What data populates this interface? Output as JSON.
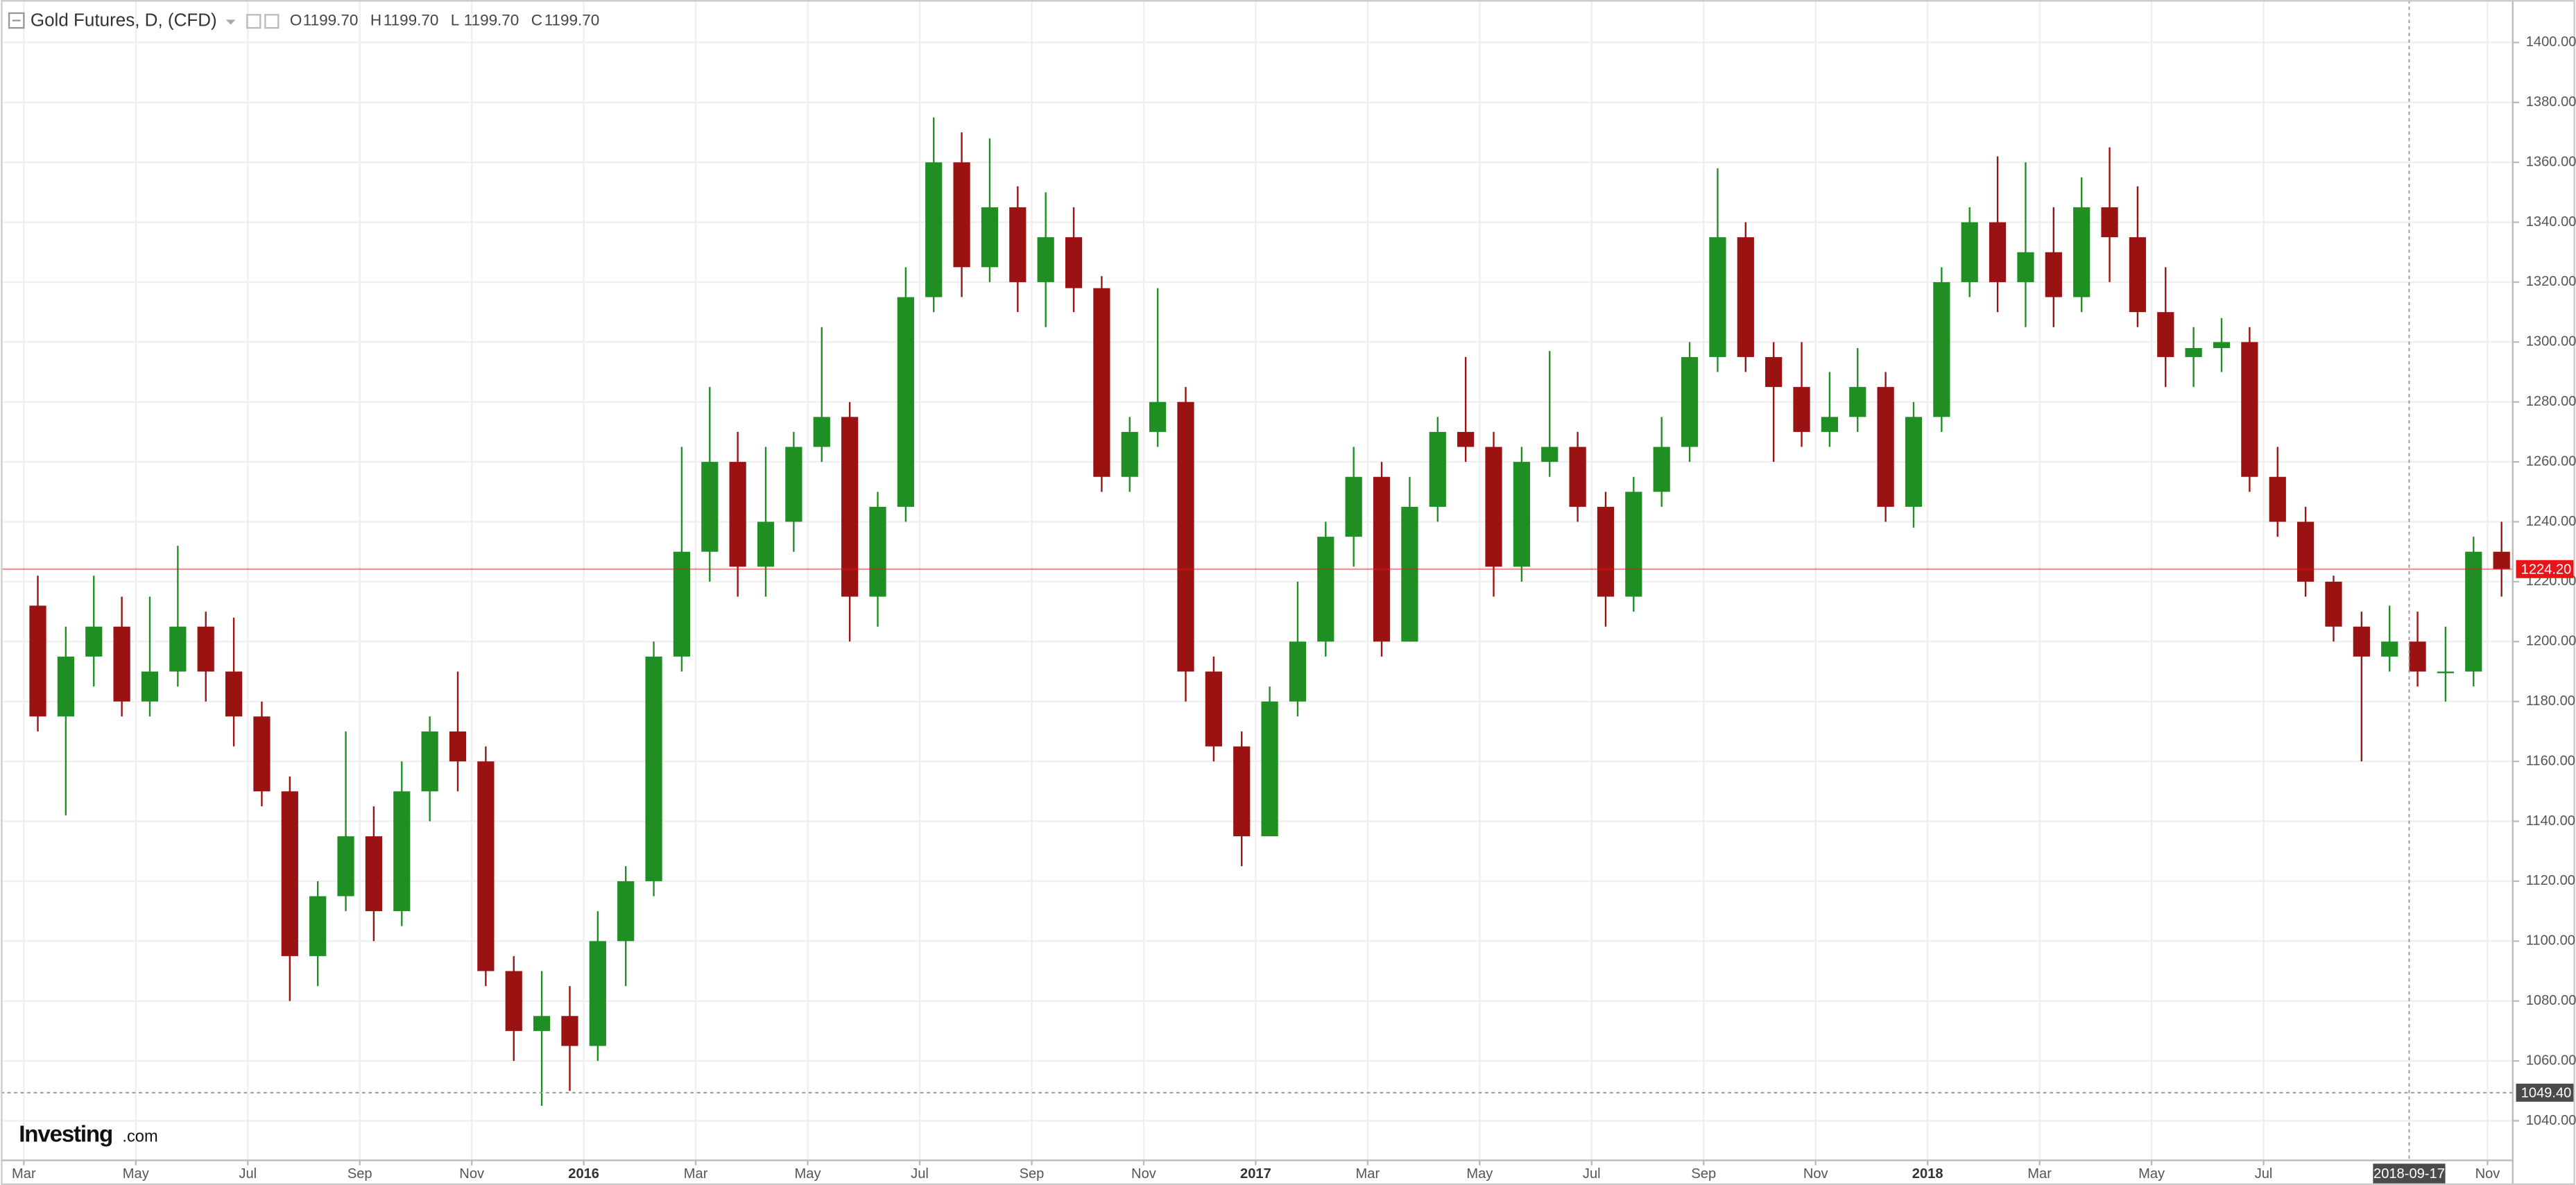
{
  "chart_data": {
    "type": "candlestick",
    "title": "Gold Futures, D, (CFD)",
    "ohlc_readout": [
      {
        "name": "O",
        "value": 1199.7,
        "label": "1199.70"
      },
      {
        "name": "H",
        "value": 1199.7,
        "label": "1199.70"
      },
      {
        "name": "L",
        "value": 1199.7,
        "label": "1199.70"
      },
      {
        "name": "C",
        "value": 1199.7,
        "label": "1199.70"
      }
    ],
    "open": [
      1212,
      1175,
      1195,
      1205,
      1180,
      1190,
      1205,
      1190,
      1175,
      1150,
      1095,
      1115,
      1135,
      1110,
      1150,
      1170,
      1160,
      1090,
      1070,
      1075,
      1065,
      1100,
      1120,
      1195,
      1230,
      1260,
      1225,
      1240,
      1265,
      1275,
      1215,
      1245,
      1315,
      1360,
      1325,
      1345,
      1320,
      1335,
      1318,
      1255,
      1270,
      1280,
      1190,
      1165,
      1135,
      1180,
      1200,
      1235,
      1255,
      1200,
      1245,
      1270,
      1265,
      1225,
      1260,
      1265,
      1245,
      1215,
      1250,
      1265,
      1295,
      1335,
      1295,
      1285,
      1270,
      1275,
      1285,
      1245,
      1275,
      1320,
      1340,
      1320,
      1330,
      1315,
      1345,
      1335,
      1310,
      1295,
      1298,
      1300,
      1255,
      1240,
      1220,
      1205,
      1195,
      1200,
      1190,
      1190,
      1230
    ],
    "high": [
      1222,
      1205,
      1222,
      1215,
      1215,
      1232,
      1210,
      1208,
      1180,
      1155,
      1120,
      1170,
      1145,
      1160,
      1175,
      1190,
      1165,
      1095,
      1090,
      1085,
      1110,
      1125,
      1200,
      1265,
      1285,
      1270,
      1265,
      1270,
      1305,
      1280,
      1250,
      1325,
      1375,
      1370,
      1368,
      1352,
      1350,
      1345,
      1322,
      1275,
      1318,
      1285,
      1195,
      1170,
      1185,
      1220,
      1240,
      1265,
      1260,
      1255,
      1275,
      1295,
      1270,
      1265,
      1297,
      1270,
      1250,
      1255,
      1275,
      1300,
      1358,
      1340,
      1300,
      1300,
      1290,
      1298,
      1290,
      1280,
      1325,
      1345,
      1362,
      1360,
      1345,
      1355,
      1365,
      1352,
      1325,
      1305,
      1308,
      1305,
      1265,
      1245,
      1222,
      1210,
      1212,
      1210,
      1205,
      1235,
      1240
    ],
    "low": [
      1170,
      1142,
      1185,
      1175,
      1175,
      1185,
      1180,
      1165,
      1145,
      1080,
      1085,
      1110,
      1100,
      1105,
      1140,
      1150,
      1085,
      1060,
      1045,
      1050,
      1060,
      1085,
      1115,
      1190,
      1220,
      1215,
      1215,
      1230,
      1260,
      1200,
      1205,
      1240,
      1310,
      1315,
      1320,
      1310,
      1305,
      1310,
      1250,
      1250,
      1265,
      1180,
      1160,
      1125,
      1135,
      1175,
      1195,
      1225,
      1195,
      1200,
      1240,
      1260,
      1215,
      1220,
      1255,
      1240,
      1205,
      1210,
      1245,
      1260,
      1290,
      1290,
      1260,
      1265,
      1265,
      1270,
      1240,
      1238,
      1270,
      1315,
      1310,
      1305,
      1305,
      1310,
      1320,
      1305,
      1285,
      1285,
      1290,
      1250,
      1235,
      1215,
      1200,
      1160,
      1190,
      1185,
      1180,
      1185,
      1215
    ],
    "close": [
      1175,
      1195,
      1205,
      1180,
      1190,
      1205,
      1190,
      1175,
      1150,
      1095,
      1115,
      1135,
      1110,
      1150,
      1170,
      1160,
      1090,
      1070,
      1075,
      1065,
      1100,
      1120,
      1195,
      1230,
      1260,
      1225,
      1240,
      1265,
      1275,
      1215,
      1245,
      1315,
      1360,
      1325,
      1345,
      1320,
      1335,
      1318,
      1255,
      1270,
      1280,
      1190,
      1165,
      1135,
      1180,
      1200,
      1235,
      1255,
      1200,
      1245,
      1270,
      1265,
      1225,
      1260,
      1265,
      1245,
      1215,
      1250,
      1265,
      1295,
      1335,
      1295,
      1285,
      1270,
      1275,
      1285,
      1245,
      1275,
      1320,
      1340,
      1320,
      1330,
      1315,
      1345,
      1335,
      1310,
      1295,
      1298,
      1300,
      1255,
      1240,
      1220,
      1205,
      1195,
      1200,
      1190,
      1190,
      1230,
      1224.2
    ],
    "colors": {
      "up": "#1f8f24",
      "down": "#9b1212"
    },
    "xlim": [
      -1.32,
      88.4
    ],
    "xticks": [
      {
        "value": -0.5,
        "label": "Mar"
      },
      {
        "value": 3.5,
        "label": "May"
      },
      {
        "value": 7.5,
        "label": "Jul"
      },
      {
        "value": 11.5,
        "label": "Sep"
      },
      {
        "value": 15.5,
        "label": "Nov"
      },
      {
        "value": 19.5,
        "label": "2016"
      },
      {
        "value": 23.5,
        "label": "Mar"
      },
      {
        "value": 27.5,
        "label": "May"
      },
      {
        "value": 31.5,
        "label": "Jul"
      },
      {
        "value": 35.5,
        "label": "Sep"
      },
      {
        "value": 39.5,
        "label": "Nov"
      },
      {
        "value": 43.5,
        "label": "2017"
      },
      {
        "value": 47.5,
        "label": "Mar"
      },
      {
        "value": 51.5,
        "label": "May"
      },
      {
        "value": 55.5,
        "label": "Jul"
      },
      {
        "value": 59.5,
        "label": "Sep"
      },
      {
        "value": 63.5,
        "label": "Nov"
      },
      {
        "value": 67.5,
        "label": "2018"
      },
      {
        "value": 71.5,
        "label": "Mar"
      },
      {
        "value": 75.5,
        "label": "May"
      },
      {
        "value": 79.5,
        "label": "Jul"
      },
      {
        "value": 87.5,
        "label": "Nov"
      }
    ],
    "ylim": [
      1026.8,
      1414.2
    ],
    "yticks": [
      {
        "value": 1040,
        "label": "1040.00"
      },
      {
        "value": 1060,
        "label": "1060.00"
      },
      {
        "value": 1080,
        "label": "1080.00"
      },
      {
        "value": 1100,
        "label": "1100.00"
      },
      {
        "value": 1120,
        "label": "1120.00"
      },
      {
        "value": 1140,
        "label": "1140.00"
      },
      {
        "value": 1160,
        "label": "1160.00"
      },
      {
        "value": 1180,
        "label": "1180.00"
      },
      {
        "value": 1200,
        "label": "1200.00"
      },
      {
        "value": 1220,
        "label": "1220.00"
      },
      {
        "value": 1240,
        "label": "1240.00"
      },
      {
        "value": 1260,
        "label": "1260.00"
      },
      {
        "value": 1280,
        "label": "1280.00"
      },
      {
        "value": 1300,
        "label": "1300.00"
      },
      {
        "value": 1320,
        "label": "1320.00"
      },
      {
        "value": 1340,
        "label": "1340.00"
      },
      {
        "value": 1360,
        "label": "1360.00"
      },
      {
        "value": 1380,
        "label": "1380.00"
      },
      {
        "value": 1400,
        "label": "1400.00"
      }
    ],
    "grid": true,
    "last_price": {
      "value": 1224.2,
      "label": "1224.20",
      "color": "#e8141a"
    },
    "crosshair": {
      "y": {
        "value": 1049.4,
        "label": "1049.40"
      },
      "x": {
        "value": 84.7,
        "label": "2018-09-17"
      }
    },
    "watermark": [
      "Investing",
      ".com"
    ]
  }
}
